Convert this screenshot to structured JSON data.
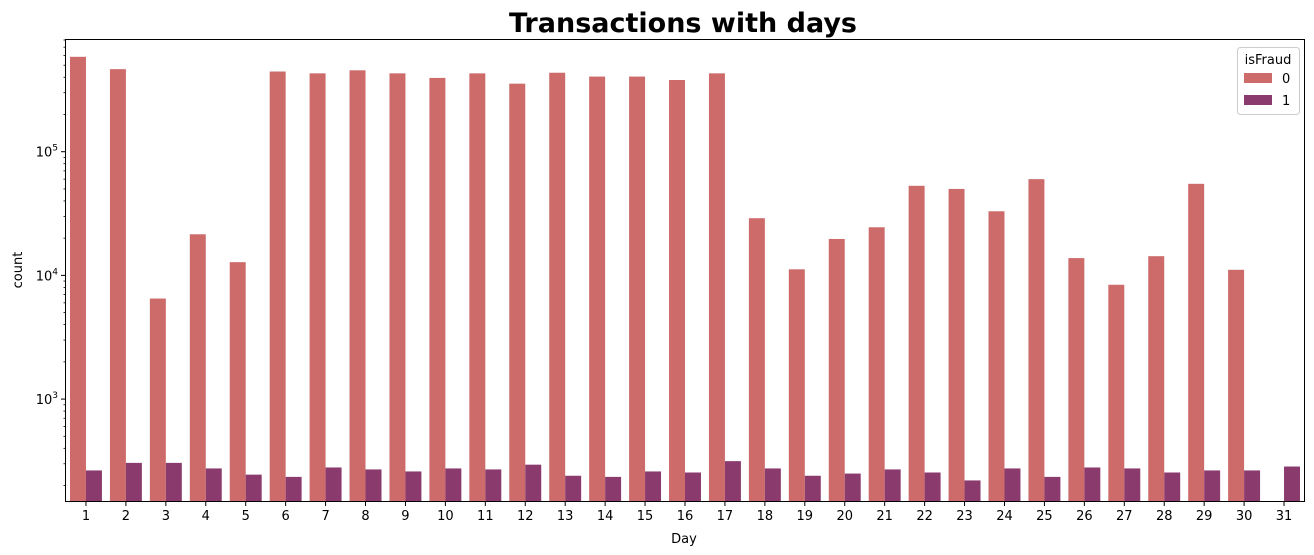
{
  "chart_data": {
    "type": "bar",
    "title": "Transactions with days",
    "xlabel": "Day",
    "ylabel": "count",
    "yscale": "log",
    "ylim": [
      150,
      800000
    ],
    "yticks": [
      {
        "value": 1000,
        "base": "10",
        "exp": "3"
      },
      {
        "value": 10000,
        "base": "10",
        "exp": "4"
      },
      {
        "value": 100000,
        "base": "10",
        "exp": "5"
      }
    ],
    "grid": false,
    "legend": {
      "title": "isFraud",
      "placement": "top-right"
    },
    "categories": [
      "1",
      "2",
      "3",
      "4",
      "5",
      "6",
      "7",
      "8",
      "9",
      "10",
      "11",
      "12",
      "13",
      "14",
      "15",
      "16",
      "17",
      "18",
      "19",
      "20",
      "21",
      "22",
      "23",
      "24",
      "25",
      "26",
      "27",
      "28",
      "29",
      "30",
      "31"
    ],
    "series": [
      {
        "name": "0",
        "color": "#cd6b6b",
        "values": [
          585000,
          465000,
          6500,
          21500,
          12800,
          445000,
          430000,
          455000,
          430000,
          395000,
          430000,
          355000,
          435000,
          405000,
          405000,
          380000,
          430000,
          29000,
          11200,
          19700,
          24500,
          53000,
          50000,
          33000,
          60000,
          13800,
          8400,
          14300,
          55000,
          11100,
          null
        ]
      },
      {
        "name": "1",
        "color": "#8b3a6e",
        "values": [
          265,
          305,
          305,
          275,
          245,
          235,
          280,
          270,
          260,
          275,
          270,
          295,
          240,
          235,
          260,
          255,
          315,
          275,
          240,
          250,
          270,
          255,
          220,
          275,
          235,
          280,
          275,
          255,
          265,
          265,
          285
        ]
      }
    ]
  }
}
